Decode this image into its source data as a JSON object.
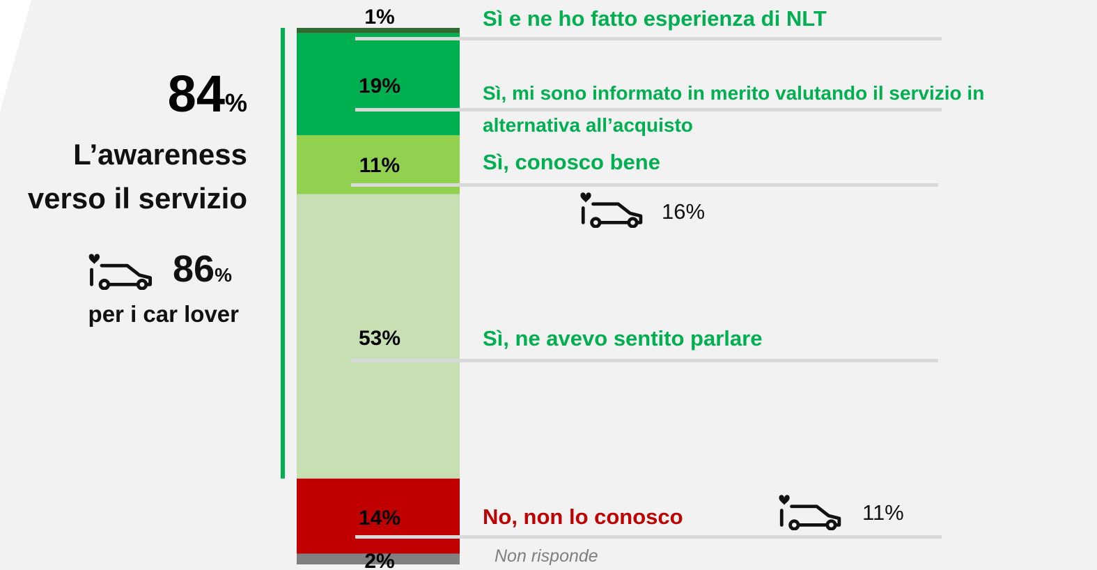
{
  "chart_data": {
    "type": "stacked-bar",
    "categories": [
      "Sì e ne ho fatto esperienza di NLT",
      "Sì, mi  sono informato in merito valutando il servizio in alternativa all’acquisto",
      "Sì, conosco bene",
      "Sì, ne avevo sentito parlare",
      "No, non lo conosco",
      "Non risponde"
    ],
    "values": [
      1,
      19,
      11,
      53,
      14,
      2
    ],
    "value_labels": [
      "1%",
      "19%",
      "11%",
      "53%",
      "14%",
      "2%"
    ],
    "colors": [
      "#2f6b2f",
      "#00b050",
      "#92d050",
      "#c6e0b4",
      "#c00000",
      "#808080"
    ],
    "label_colors": [
      "#00b050",
      "#00b050",
      "#00b050",
      "#00b050",
      "#c00000",
      "#7f7f7f"
    ],
    "ylim": [
      0,
      100
    ],
    "summary": {
      "value": "84",
      "unit": "%",
      "label": "L’awareness verso il servizio"
    },
    "car_lover": {
      "value": "86",
      "unit": "%",
      "label": "per i car lover"
    },
    "annotations": [
      {
        "text": "16%",
        "category": 2
      },
      {
        "text": "11%",
        "category": 4
      }
    ]
  }
}
